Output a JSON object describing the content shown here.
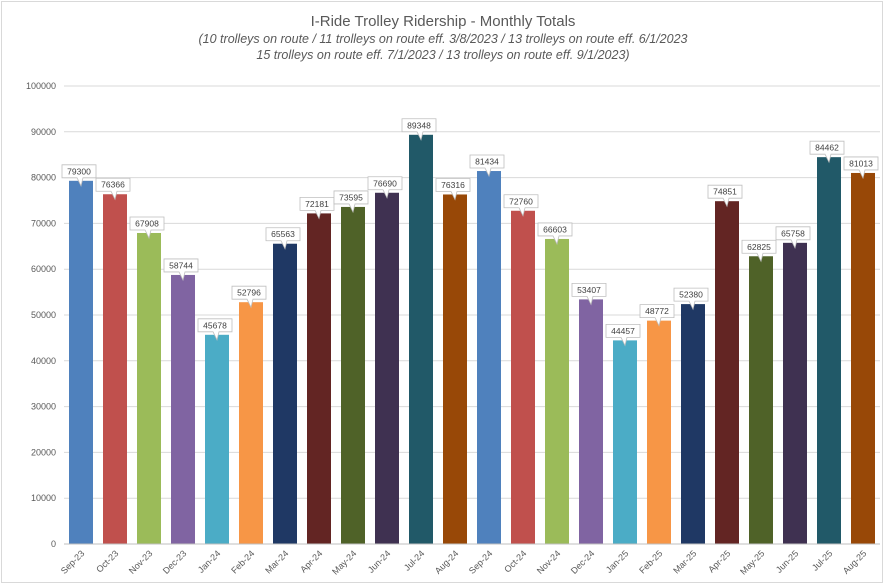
{
  "chart_data": {
    "type": "bar",
    "title": "I-Ride Trolley Ridership - Monthly Totals",
    "subtitle_lines": [
      "(10 trolleys on route / 11 trolleys on route eff. 3/8/2023 / 13 trolleys on route eff. 6/1/2023",
      "15 trolleys on route eff. 7/1/2023 / 13 trolleys on route eff. 9/1/2023)"
    ],
    "categories": [
      "Sep-23",
      "Oct-23",
      "Nov-23",
      "Dec-23",
      "Jan-24",
      "Feb-24",
      "Mar-24",
      "Apr-24",
      "May-24",
      "Jun-24",
      "Jul-24",
      "Aug-24",
      "Sep-24",
      "Oct-24",
      "Nov-24",
      "Dec-24",
      "Jan-25",
      "Feb-25",
      "Mar-25",
      "Apr-25",
      "May-25",
      "Jun-25",
      "Jul-25",
      "Aug-25"
    ],
    "values": [
      79300,
      76366,
      67908,
      58744,
      45678,
      52796,
      65563,
      72181,
      73595,
      76690,
      89348,
      76316,
      81434,
      72760,
      66603,
      53407,
      44457,
      48772,
      52380,
      74851,
      62825,
      65758,
      84462,
      81013
    ],
    "value_labels": [
      "79300",
      "76366",
      "67908",
      "58744",
      "45678",
      "52796",
      "65563",
      "72181",
      "73595",
      "76690",
      "89348",
      "76316",
      "81434",
      "72760",
      "66603",
      "53407",
      "44457",
      "48772",
      "52380",
      "74851",
      "62825",
      "65758",
      "84462",
      "81013"
    ],
    "colors": [
      "#4f81bd",
      "#c0504d",
      "#9bbb59",
      "#8064a2",
      "#4bacc6",
      "#f79646",
      "#1f3864",
      "#632523",
      "#4f6228",
      "#3f3151",
      "#215968",
      "#984807",
      "#4f81bd",
      "#c0504d",
      "#9bbb59",
      "#8064a2",
      "#4bacc6",
      "#f79646",
      "#1f3864",
      "#632523",
      "#4f6228",
      "#3f3151",
      "#215968",
      "#984807"
    ],
    "yticks": [
      "0",
      "10000",
      "20000",
      "30000",
      "40000",
      "50000",
      "60000",
      "70000",
      "80000",
      "90000",
      "100000"
    ],
    "ylim": [
      0,
      100000
    ],
    "grid": true,
    "legend": "none"
  }
}
